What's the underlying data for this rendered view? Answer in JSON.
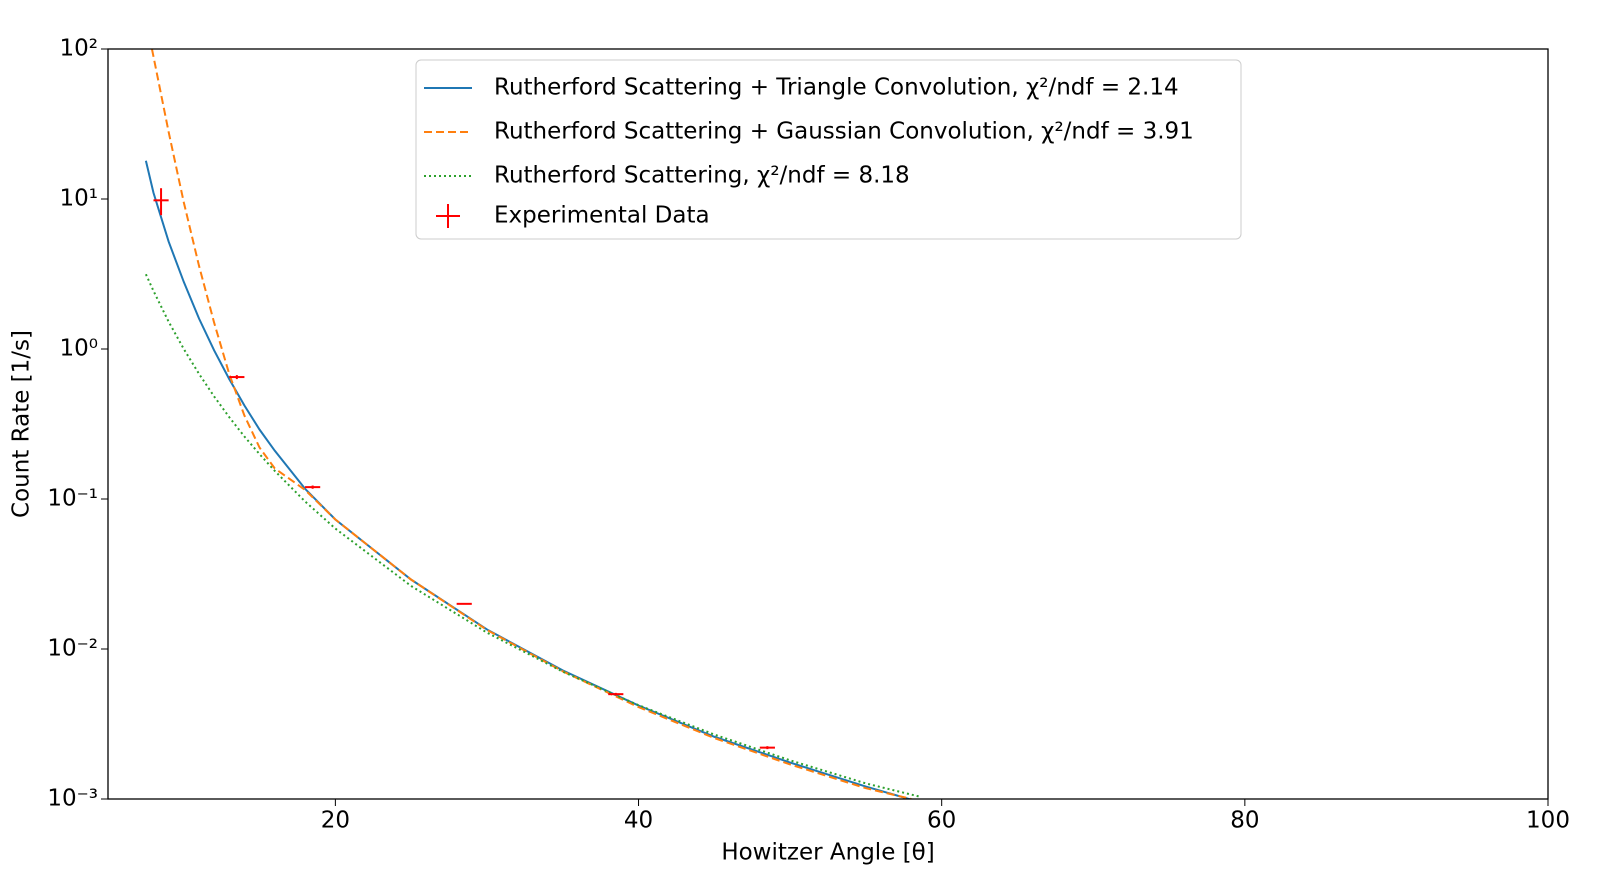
{
  "chart_data": {
    "type": "line",
    "x_label": "Howitzer Angle [θ]",
    "y_label": "Count Rate [1/s]",
    "xlim": [
      5,
      100
    ],
    "xticks": [
      20,
      40,
      60,
      80,
      100
    ],
    "ylim": [
      0.001,
      100
    ],
    "y_scale": "log",
    "yticks": [
      {
        "value": 0.001,
        "label": "10⁻³"
      },
      {
        "value": 0.01,
        "label": "10⁻²"
      },
      {
        "value": 0.1,
        "label": "10⁻¹"
      },
      {
        "value": 1,
        "label": "10⁰"
      },
      {
        "value": 10,
        "label": "10¹"
      },
      {
        "value": 100,
        "label": "10²"
      }
    ],
    "grid": false,
    "legend": "upper center",
    "series": [
      {
        "name": "Rutherford Scattering + Triangle Convolution, χ²/ndf = 2.14",
        "color": "#1f77b4",
        "line_style": "solid",
        "x": [
          7.5,
          8,
          9,
          10,
          11,
          12,
          13,
          14,
          15,
          16,
          18,
          20,
          25,
          30,
          35,
          40,
          45,
          50,
          55,
          58
        ],
        "values": [
          18,
          11,
          5.2,
          2.8,
          1.6,
          0.98,
          0.63,
          0.42,
          0.29,
          0.21,
          0.117,
          0.073,
          0.029,
          0.0135,
          0.0072,
          0.0042,
          0.0026,
          0.00175,
          0.00121,
          0.00099
        ]
      },
      {
        "name": "Rutherford Scattering + Gaussian Convolution, χ²/ndf = 3.91",
        "color": "#ff7f0e",
        "line_style": "dashed",
        "x": [
          7.9,
          9,
          10,
          11,
          12,
          13,
          14,
          15,
          16,
          18,
          20,
          25,
          30,
          35,
          40,
          45,
          50,
          55,
          58
        ],
        "values": [
          100,
          28,
          9.5,
          3.6,
          1.5,
          0.68,
          0.36,
          0.22,
          0.16,
          0.115,
          0.073,
          0.029,
          0.0134,
          0.0071,
          0.0041,
          0.00255,
          0.0017,
          0.00118,
          0.001
        ]
      },
      {
        "name": "Rutherford Scattering, χ²/ndf = 8.18",
        "color": "#2ca02c",
        "line_style": "dotted",
        "x": [
          7.5,
          8,
          9,
          10,
          11,
          12,
          13,
          14,
          15,
          16,
          18,
          20,
          25,
          30,
          35,
          40,
          45,
          50,
          55,
          58.5
        ],
        "values": [
          3.15,
          2.44,
          1.52,
          1.0,
          0.684,
          0.483,
          0.351,
          0.261,
          0.199,
          0.154,
          0.0963,
          0.0635,
          0.0263,
          0.01286,
          0.00706,
          0.00422,
          0.00269,
          0.00181,
          0.00127,
          0.00104
        ]
      }
    ],
    "points": {
      "name": "Experimental Data",
      "color": "#ff0000",
      "x": [
        8.5,
        13.5,
        18.5,
        28.5,
        38.5,
        48.5
      ],
      "values": [
        9.8,
        0.65,
        0.12,
        0.02,
        0.005,
        0.0022
      ],
      "xerr": [
        0.5,
        0.5,
        0.5,
        0.5,
        0.5,
        0.5
      ],
      "yerr": [
        2,
        0.02,
        0.003,
        0.0002,
        0.0001,
        5e-05
      ]
    }
  }
}
